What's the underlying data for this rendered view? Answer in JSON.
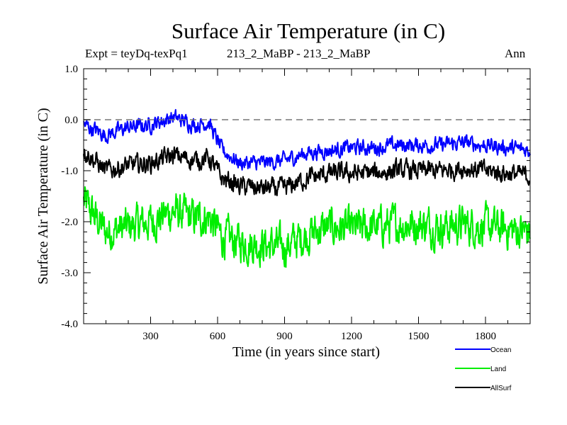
{
  "chart_data": {
    "type": "line",
    "title": "Surface Air Temperature (in C)",
    "subtitle_left": "Expt = teyDq-texPq1",
    "subtitle_center": "213_2_MaBP - 213_2_MaBP",
    "subtitle_right": "Ann",
    "xlabel": "Time (in years since start)",
    "ylabel": "Surface Air Temperature (in C)",
    "xlim": [
      0,
      2000
    ],
    "ylim": [
      -4.0,
      1.0
    ],
    "xticks": [
      300,
      600,
      900,
      1200,
      1500,
      1800
    ],
    "xtick_labels": [
      "300",
      "600",
      "900",
      "1200",
      "1500",
      "1800"
    ],
    "yticks": [
      1.0,
      0.0,
      -1.0,
      -2.0,
      -3.0,
      -4.0
    ],
    "ytick_labels": [
      "1.0",
      "0.0",
      "-1.0",
      "-2.0",
      "-3.0",
      "-4.0"
    ],
    "reference_line": 0.0,
    "x": [
      0,
      100,
      200,
      300,
      400,
      500,
      560,
      620,
      700,
      800,
      900,
      1000,
      1100,
      1200,
      1300,
      1400,
      1500,
      1600,
      1700,
      1800,
      1900,
      2000
    ],
    "series": [
      {
        "name": "Ocean",
        "color": "#0000ff",
        "noise": 0.12,
        "values": [
          -0.1,
          -0.3,
          -0.15,
          -0.1,
          0.05,
          -0.1,
          -0.05,
          -0.6,
          -0.85,
          -0.85,
          -0.8,
          -0.65,
          -0.6,
          -0.55,
          -0.55,
          -0.5,
          -0.5,
          -0.5,
          -0.45,
          -0.5,
          -0.55,
          -0.6
        ]
      },
      {
        "name": "Land",
        "color": "#00ee00",
        "noise": 0.3,
        "values": [
          -1.6,
          -2.2,
          -2.1,
          -2.0,
          -1.8,
          -1.95,
          -1.9,
          -2.3,
          -2.4,
          -2.45,
          -2.5,
          -2.25,
          -2.1,
          -2.15,
          -2.1,
          -2.05,
          -2.05,
          -2.1,
          -2.05,
          -2.1,
          -2.15,
          -2.2
        ]
      },
      {
        "name": "AllSurf",
        "color": "#000000",
        "noise": 0.15,
        "values": [
          -0.6,
          -1.0,
          -0.9,
          -0.85,
          -0.7,
          -0.8,
          -0.75,
          -1.15,
          -1.3,
          -1.35,
          -1.35,
          -1.15,
          -1.05,
          -1.05,
          -1.05,
          -1.0,
          -1.0,
          -1.0,
          -0.95,
          -1.0,
          -1.05,
          -1.1
        ]
      }
    ],
    "legend": [
      "Ocean",
      "Land",
      "AllSurf"
    ],
    "legend_position": "bottom-right"
  }
}
